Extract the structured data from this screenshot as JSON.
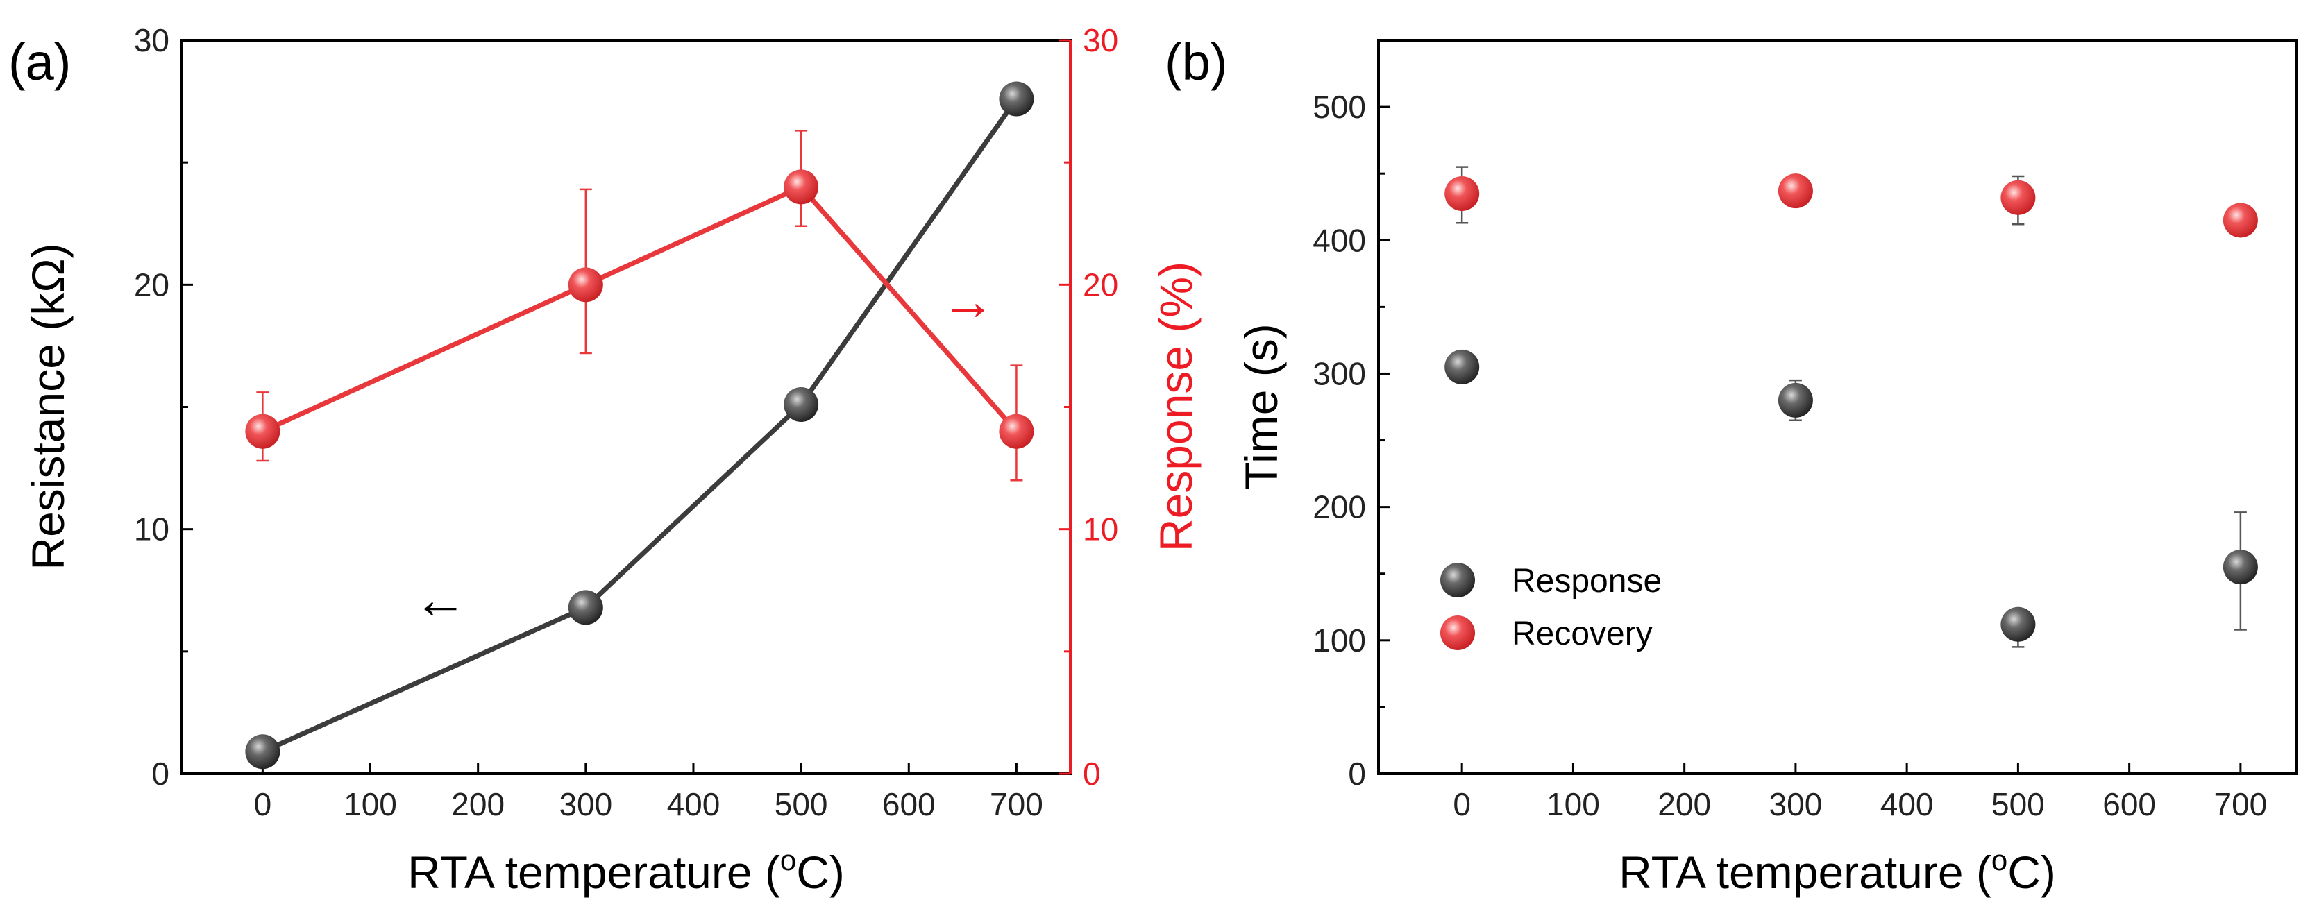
{
  "figure": {
    "colors": {
      "black_series": "#3c3c3c",
      "red_series": "#e8383b",
      "axis": "#000000",
      "right_axis": "#ed1c24"
    }
  },
  "chart_data": [
    {
      "panel_label": "(a)",
      "type": "line",
      "xlabel": "RTA temperature (",
      "xlabel_sup": "o",
      "xlabel_unit": "C)",
      "xlim": [
        -75,
        750
      ],
      "xticks": [
        0,
        100,
        200,
        300,
        400,
        500,
        600,
        700
      ],
      "ylabel_left": "Resistance (kΩ)",
      "ylim_left": [
        0,
        30
      ],
      "yticks_left": [
        0,
        10,
        20,
        30
      ],
      "ylabel_right": "Response (%)",
      "ylim_right": [
        0,
        30
      ],
      "yticks_right": [
        0,
        10,
        20,
        30
      ],
      "series": [
        {
          "name": "Resistance",
          "axis": "left",
          "color": "#3c3c3c",
          "x": [
            0,
            300,
            500,
            700
          ],
          "values": [
            0.9,
            6.8,
            15.1,
            27.6
          ]
        },
        {
          "name": "Response",
          "axis": "right",
          "color": "#e8383b",
          "x": [
            0,
            300,
            500,
            700
          ],
          "values": [
            14.0,
            20.0,
            24.0,
            14.0
          ],
          "err_low": [
            12.8,
            17.2,
            22.4,
            12.0
          ],
          "err_high": [
            15.6,
            23.9,
            26.3,
            16.7
          ]
        }
      ],
      "annotations": [
        {
          "text": "←",
          "color": "#000000",
          "x": 165,
          "y_left": 7.0
        },
        {
          "text": "→",
          "color": "#ed1c24",
          "x": 655,
          "y_left": 19.2
        }
      ]
    },
    {
      "panel_label": "(b)",
      "type": "scatter",
      "xlabel": "RTA temperature (",
      "xlabel_sup": "o",
      "xlabel_unit": "C)",
      "xlim": [
        -75,
        750
      ],
      "xticks": [
        0,
        100,
        200,
        300,
        400,
        500,
        600,
        700
      ],
      "ylabel": "Time (s)",
      "ylim": [
        0,
        550
      ],
      "yticks": [
        0,
        100,
        200,
        300,
        400,
        500
      ],
      "legend": {
        "placement": "center-left",
        "entries": [
          "Response",
          "Recovery"
        ]
      },
      "series": [
        {
          "name": "Response",
          "color": "#3c3c3c",
          "x": [
            0,
            300,
            500,
            700
          ],
          "values": [
            305,
            280,
            112,
            155
          ],
          "err_low": [
            300,
            265,
            95,
            108
          ],
          "err_high": [
            310,
            295,
            123,
            196
          ]
        },
        {
          "name": "Recovery",
          "color": "#e8383b",
          "x": [
            0,
            300,
            500,
            700
          ],
          "values": [
            435,
            437,
            432,
            415
          ],
          "err_low": [
            413,
            430,
            412,
            405
          ],
          "err_high": [
            455,
            443,
            448,
            426
          ]
        }
      ]
    }
  ]
}
